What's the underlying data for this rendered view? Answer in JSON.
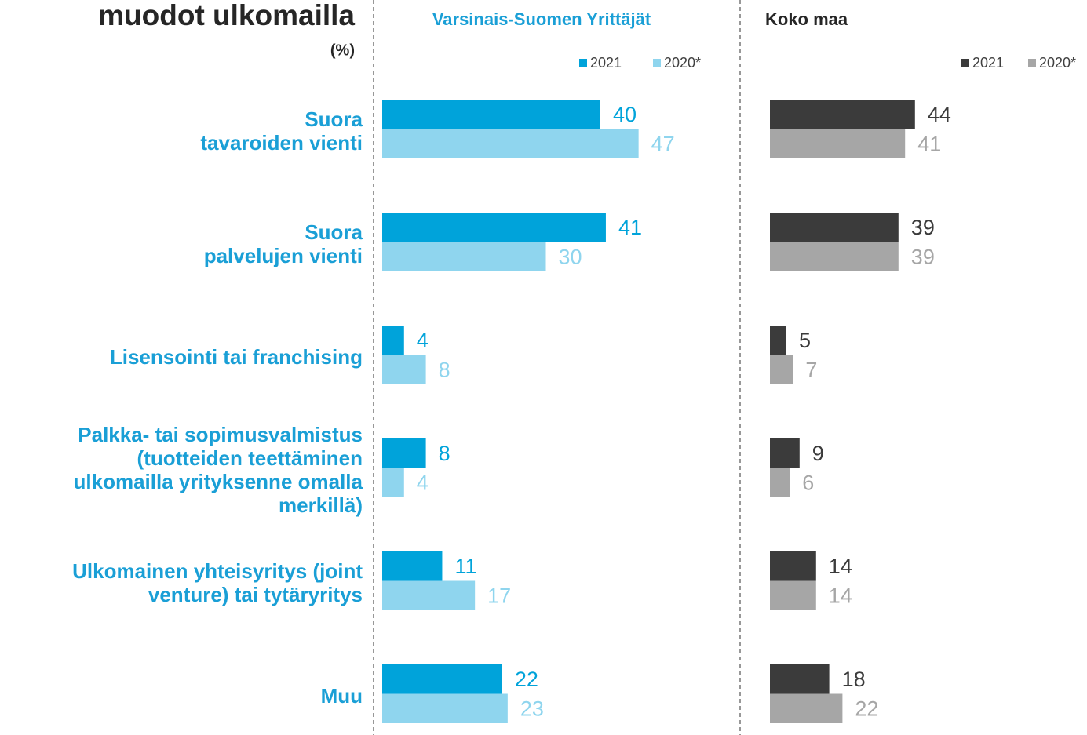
{
  "header": {
    "title": "muodot ulkomailla",
    "subtitle": "(%)"
  },
  "chart_data": [
    {
      "type": "bar",
      "title": "Varsinais-Suomen Yrittäjät",
      "categories": [
        "Suora\ntavaroiden vienti",
        "Suora\npalvelujen vienti",
        "Lisensointi tai franchising",
        "Palkka- tai sopimusvalmistus\n(tuotteiden teettäminen\nulkomailla yrityksenne omalla\nmerkillä)",
        "Ulkomainen yhteisyritys (joint\nventure) tai tytäryritys",
        "Muu"
      ],
      "series": [
        {
          "name": "2021",
          "color": "#00a3da",
          "values": [
            40,
            41,
            4,
            8,
            11,
            22
          ]
        },
        {
          "name": "2020*",
          "color": "#8fd5ee",
          "values": [
            47,
            30,
            8,
            4,
            17,
            23
          ]
        }
      ]
    },
    {
      "type": "bar",
      "title": "Koko maa",
      "series": [
        {
          "name": "2021",
          "color": "#3b3b3b",
          "values": [
            44,
            39,
            5,
            9,
            14,
            18
          ]
        },
        {
          "name": "2020*",
          "color": "#a6a6a6",
          "values": [
            41,
            39,
            7,
            6,
            14,
            22
          ]
        }
      ]
    }
  ]
}
